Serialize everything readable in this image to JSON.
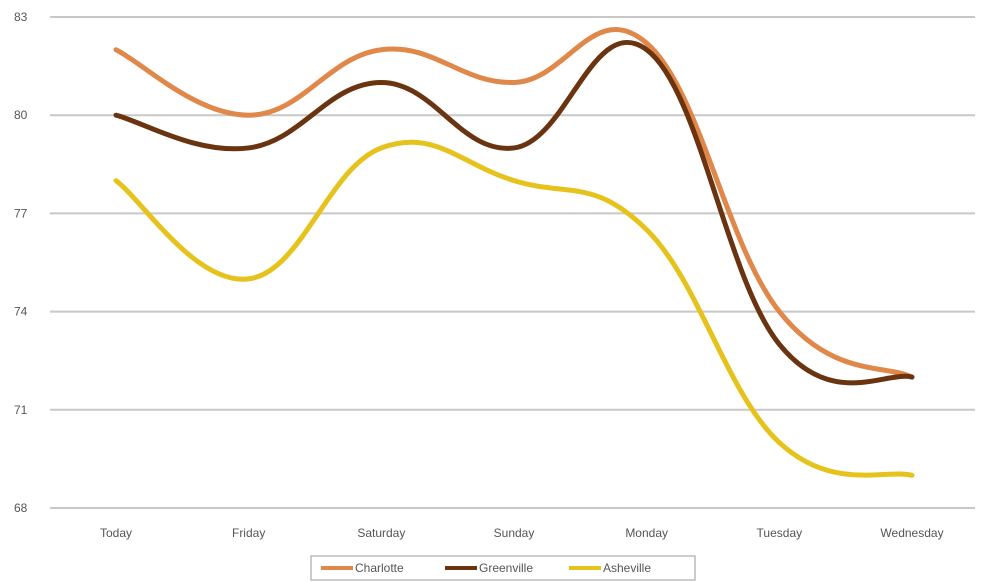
{
  "chart_data": {
    "type": "line",
    "smooth": true,
    "categories": [
      "Today",
      "Friday",
      "Saturday",
      "Sunday",
      "Monday",
      "Tuesday",
      "Wednesday"
    ],
    "series": [
      {
        "name": "Charlotte",
        "color": "#e0874a",
        "values": [
          82,
          80,
          82,
          81,
          82.2,
          74,
          72
        ]
      },
      {
        "name": "Greenville",
        "color": "#6b3410",
        "values": [
          80,
          79,
          81,
          79,
          82,
          73,
          72
        ]
      },
      {
        "name": "Asheville",
        "color": "#e6c21c",
        "values": [
          78,
          75,
          79,
          78,
          76.5,
          70,
          69
        ]
      }
    ],
    "y_ticks": [
      "68",
      "71",
      "74",
      "77",
      "80",
      "83"
    ],
    "ylim": [
      68,
      83
    ],
    "grid": true,
    "legend_position": "bottom"
  }
}
